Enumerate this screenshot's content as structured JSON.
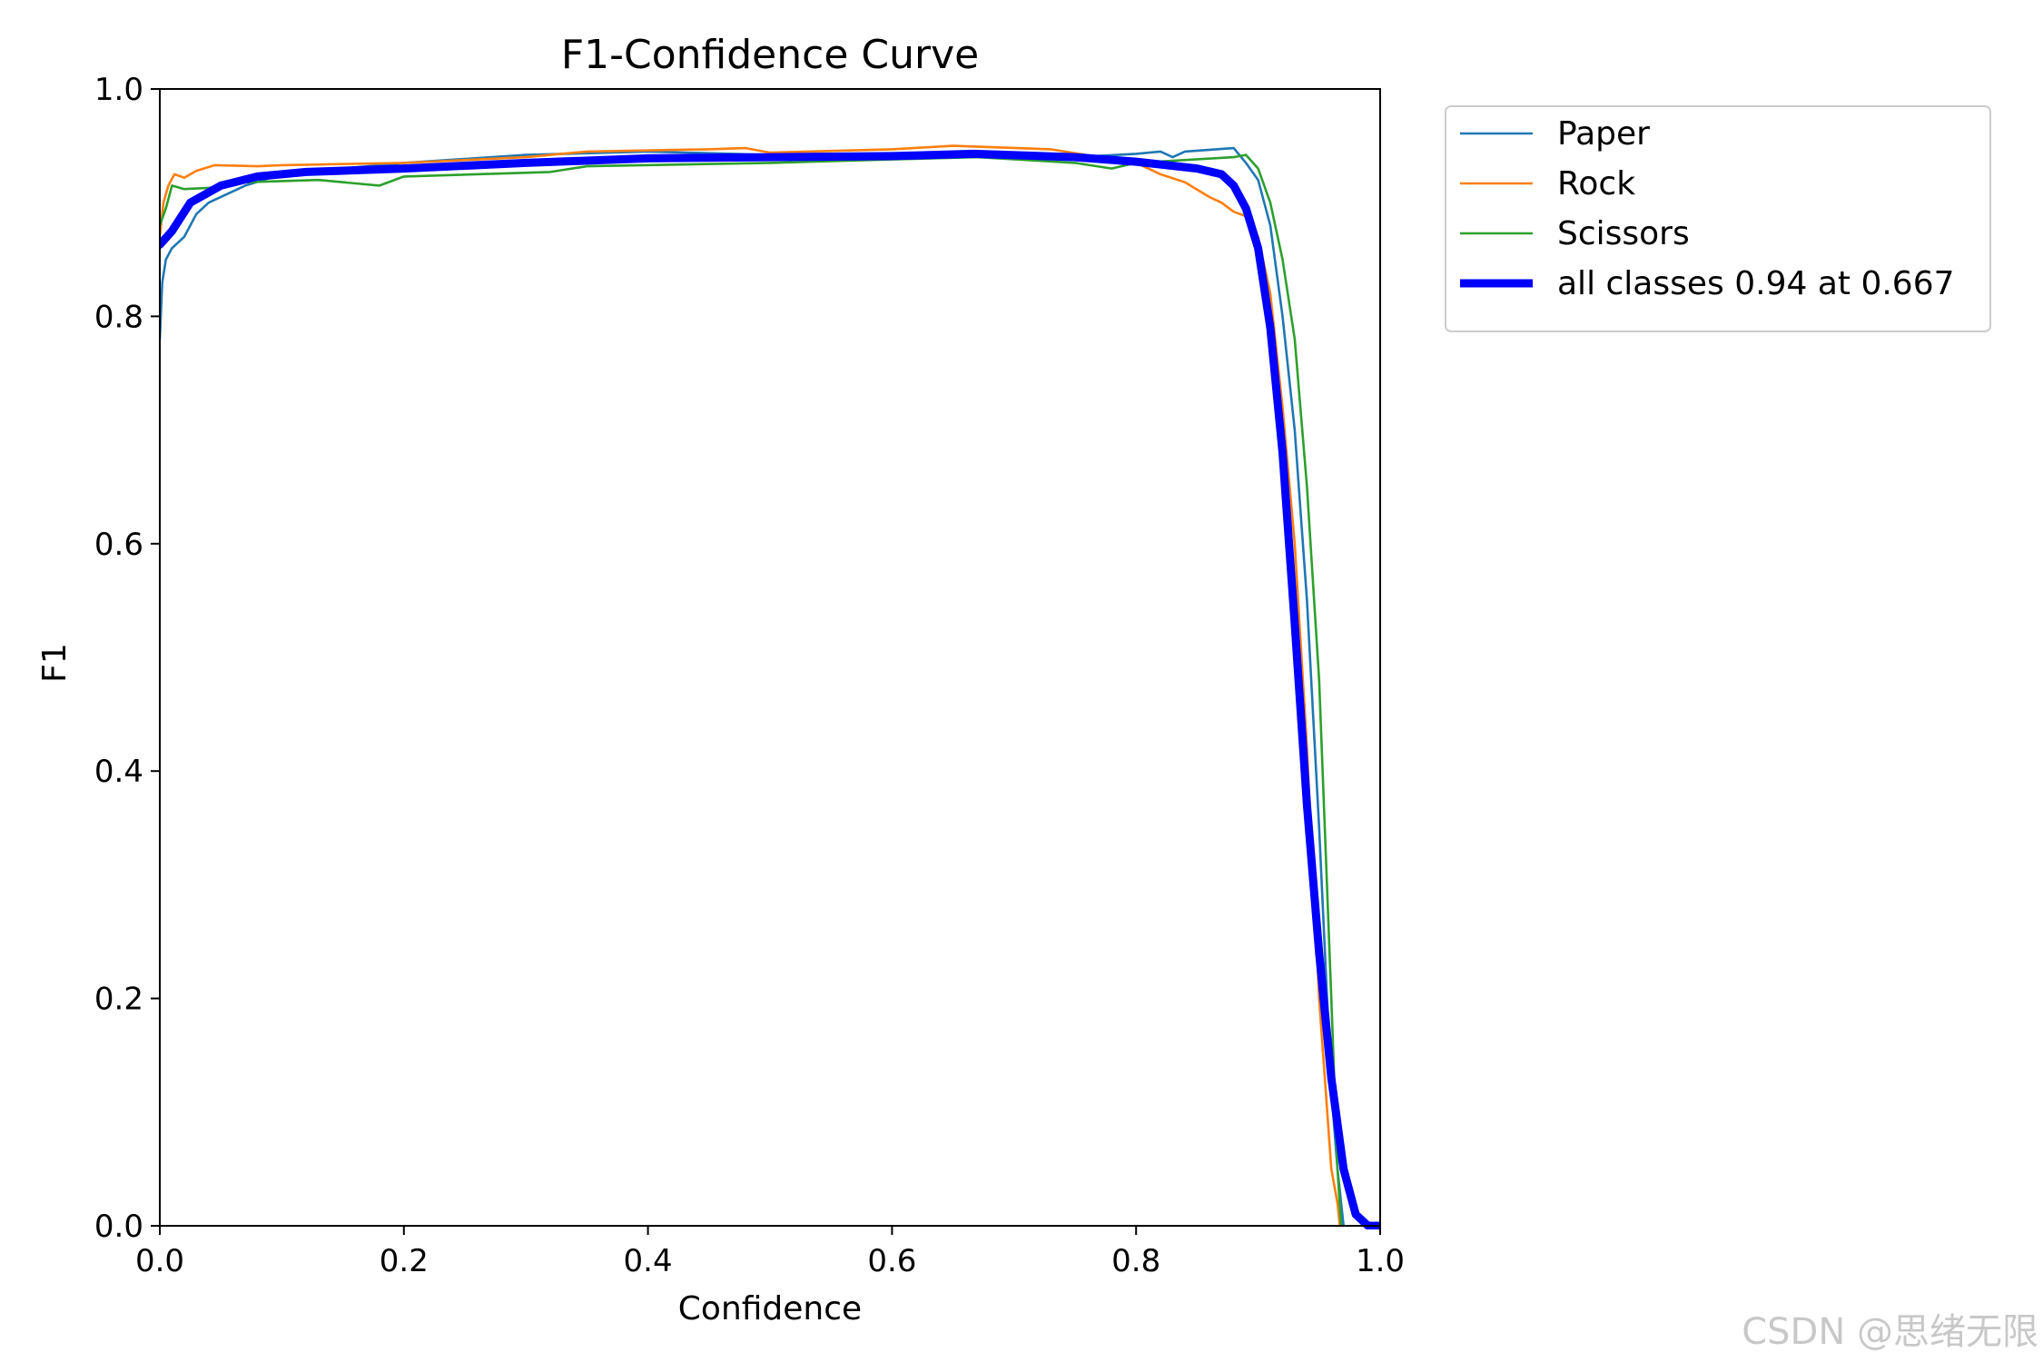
{
  "chart_data": {
    "type": "line",
    "title": "F1-Confidence Curve",
    "xlabel": "Confidence",
    "ylabel": "F1",
    "xlim": [
      0.0,
      1.0
    ],
    "ylim": [
      0.0,
      1.0
    ],
    "xticks": [
      0.0,
      0.2,
      0.4,
      0.6,
      0.8,
      1.0
    ],
    "yticks": [
      0.0,
      0.2,
      0.4,
      0.6,
      0.8,
      1.0
    ],
    "xtick_labels": [
      "0.0",
      "0.2",
      "0.4",
      "0.6",
      "0.8",
      "1.0"
    ],
    "ytick_labels": [
      "0.0",
      "0.2",
      "0.4",
      "0.6",
      "0.8",
      "1.0"
    ],
    "grid": false,
    "legend_position": "outside-top-right",
    "series": [
      {
        "name": "Paper",
        "color": "#1f77b4",
        "linewidth": "thin",
        "points": [
          [
            0.0,
            0.78
          ],
          [
            0.002,
            0.83
          ],
          [
            0.005,
            0.85
          ],
          [
            0.01,
            0.86
          ],
          [
            0.02,
            0.87
          ],
          [
            0.03,
            0.89
          ],
          [
            0.04,
            0.9
          ],
          [
            0.05,
            0.905
          ],
          [
            0.07,
            0.915
          ],
          [
            0.1,
            0.925
          ],
          [
            0.2,
            0.935
          ],
          [
            0.3,
            0.942
          ],
          [
            0.4,
            0.945
          ],
          [
            0.5,
            0.942
          ],
          [
            0.6,
            0.94
          ],
          [
            0.67,
            0.942
          ],
          [
            0.75,
            0.94
          ],
          [
            0.8,
            0.943
          ],
          [
            0.82,
            0.945
          ],
          [
            0.83,
            0.94
          ],
          [
            0.84,
            0.945
          ],
          [
            0.88,
            0.948
          ],
          [
            0.89,
            0.935
          ],
          [
            0.9,
            0.92
          ],
          [
            0.91,
            0.88
          ],
          [
            0.92,
            0.8
          ],
          [
            0.93,
            0.7
          ],
          [
            0.94,
            0.55
          ],
          [
            0.95,
            0.35
          ],
          [
            0.96,
            0.12
          ],
          [
            0.965,
            0.05
          ],
          [
            0.97,
            0.0
          ]
        ]
      },
      {
        "name": "Rock",
        "color": "#ff7f0e",
        "linewidth": "thin",
        "points": [
          [
            0.0,
            0.87
          ],
          [
            0.003,
            0.9
          ],
          [
            0.007,
            0.915
          ],
          [
            0.012,
            0.925
          ],
          [
            0.02,
            0.922
          ],
          [
            0.03,
            0.928
          ],
          [
            0.045,
            0.933
          ],
          [
            0.08,
            0.932
          ],
          [
            0.1,
            0.933
          ],
          [
            0.2,
            0.935
          ],
          [
            0.3,
            0.94
          ],
          [
            0.35,
            0.945
          ],
          [
            0.45,
            0.947
          ],
          [
            0.48,
            0.948
          ],
          [
            0.5,
            0.944
          ],
          [
            0.6,
            0.947
          ],
          [
            0.65,
            0.95
          ],
          [
            0.73,
            0.947
          ],
          [
            0.8,
            0.935
          ],
          [
            0.82,
            0.925
          ],
          [
            0.84,
            0.918
          ],
          [
            0.86,
            0.905
          ],
          [
            0.87,
            0.9
          ],
          [
            0.88,
            0.892
          ],
          [
            0.89,
            0.888
          ],
          [
            0.9,
            0.87
          ],
          [
            0.91,
            0.82
          ],
          [
            0.92,
            0.72
          ],
          [
            0.93,
            0.6
          ],
          [
            0.94,
            0.42
          ],
          [
            0.95,
            0.2
          ],
          [
            0.96,
            0.05
          ],
          [
            0.965,
            0.02
          ],
          [
            0.967,
            0.0
          ]
        ]
      },
      {
        "name": "Scissors",
        "color": "#2ca02c",
        "linewidth": "thin",
        "points": [
          [
            0.0,
            0.88
          ],
          [
            0.005,
            0.895
          ],
          [
            0.01,
            0.915
          ],
          [
            0.02,
            0.912
          ],
          [
            0.04,
            0.913
          ],
          [
            0.07,
            0.918
          ],
          [
            0.13,
            0.92
          ],
          [
            0.18,
            0.915
          ],
          [
            0.2,
            0.923
          ],
          [
            0.32,
            0.927
          ],
          [
            0.35,
            0.932
          ],
          [
            0.5,
            0.935
          ],
          [
            0.6,
            0.938
          ],
          [
            0.67,
            0.94
          ],
          [
            0.75,
            0.935
          ],
          [
            0.78,
            0.93
          ],
          [
            0.8,
            0.935
          ],
          [
            0.88,
            0.94
          ],
          [
            0.89,
            0.942
          ],
          [
            0.9,
            0.93
          ],
          [
            0.91,
            0.9
          ],
          [
            0.92,
            0.85
          ],
          [
            0.93,
            0.78
          ],
          [
            0.94,
            0.65
          ],
          [
            0.95,
            0.48
          ],
          [
            0.96,
            0.2
          ],
          [
            0.965,
            0.05
          ],
          [
            0.968,
            0.0
          ]
        ]
      },
      {
        "name": "all classes 0.94 at 0.667",
        "color": "#0000ff",
        "linewidth": "thick",
        "points": [
          [
            0.0,
            0.863
          ],
          [
            0.01,
            0.875
          ],
          [
            0.025,
            0.9
          ],
          [
            0.05,
            0.915
          ],
          [
            0.08,
            0.923
          ],
          [
            0.12,
            0.927
          ],
          [
            0.2,
            0.93
          ],
          [
            0.3,
            0.935
          ],
          [
            0.4,
            0.939
          ],
          [
            0.5,
            0.94
          ],
          [
            0.6,
            0.941
          ],
          [
            0.667,
            0.943
          ],
          [
            0.75,
            0.94
          ],
          [
            0.8,
            0.936
          ],
          [
            0.85,
            0.93
          ],
          [
            0.87,
            0.925
          ],
          [
            0.88,
            0.915
          ],
          [
            0.89,
            0.895
          ],
          [
            0.9,
            0.86
          ],
          [
            0.91,
            0.79
          ],
          [
            0.92,
            0.68
          ],
          [
            0.93,
            0.53
          ],
          [
            0.94,
            0.37
          ],
          [
            0.95,
            0.24
          ],
          [
            0.96,
            0.13
          ],
          [
            0.97,
            0.05
          ],
          [
            0.98,
            0.01
          ],
          [
            0.99,
            0.0
          ],
          [
            1.0,
            0.0
          ]
        ]
      }
    ]
  },
  "watermark": "CSDN @思绪无限"
}
